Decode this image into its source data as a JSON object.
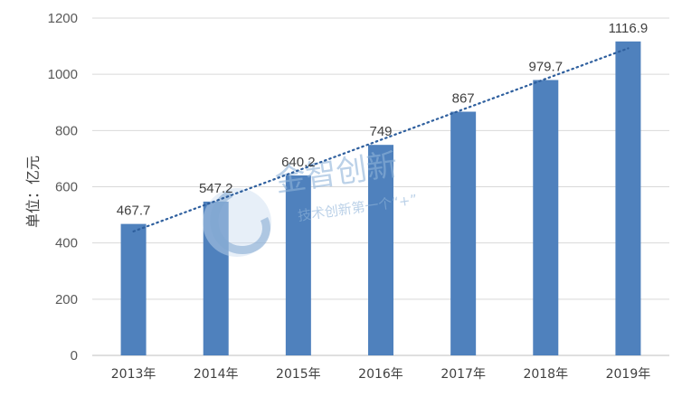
{
  "chart_data": {
    "type": "bar",
    "title": "",
    "xlabel": "",
    "ylabel": "单位：亿元",
    "categories": [
      "2013年",
      "2014年",
      "2015年",
      "2016年",
      "2017年",
      "2018年",
      "2019年"
    ],
    "values": [
      467.7,
      547.2,
      640.2,
      749,
      867,
      979.7,
      1116.9
    ],
    "data_labels": [
      "467.7",
      "547.2",
      "640.2",
      "749",
      "867",
      "979.7",
      "1116.9"
    ],
    "ylim": [
      0,
      1200
    ],
    "yticks": [
      0,
      200,
      400,
      600,
      800,
      1000,
      1200
    ],
    "grid": true,
    "trendline": "linear dotted",
    "bar_color": "#4f81bd",
    "trend_color": "#2e5f9e"
  },
  "watermark": {
    "name": "金智创新",
    "slogan": "技术创新第一个“+”"
  }
}
